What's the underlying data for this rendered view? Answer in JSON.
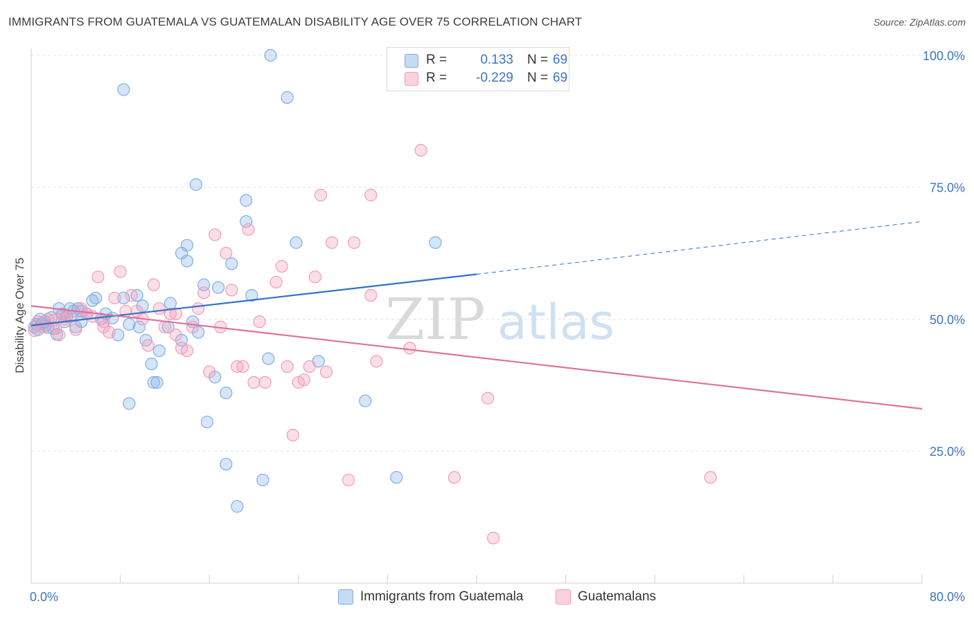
{
  "title": "IMMIGRANTS FROM GUATEMALA VS GUATEMALAN DISABILITY AGE OVER 75 CORRELATION CHART",
  "source": "Source: ZipAtlas.com",
  "watermark": {
    "zip": "ZIP",
    "atlas": "atlas"
  },
  "legend": {
    "r_label": "R =",
    "n_label": "N =",
    "rows": [
      {
        "r": "0.133",
        "n": "69",
        "color": "#7eaee6"
      },
      {
        "r": "-0.229",
        "n": "69",
        "color": "#f29ab8"
      }
    ]
  },
  "chart_data": {
    "type": "scatter",
    "title": "IMMIGRANTS FROM GUATEMALA VS GUATEMALAN DISABILITY AGE OVER 75 CORRELATION CHART",
    "xlabel": "",
    "ylabel": "Disability Age Over 75",
    "xlim": [
      0,
      80
    ],
    "ylim": [
      3,
      103
    ],
    "x_tick_labels": [
      "0.0%",
      "80.0%"
    ],
    "y_ticks": [
      25,
      50,
      75,
      100
    ],
    "y_tick_labels": [
      "25.0%",
      "50.0%",
      "75.0%",
      "100.0%"
    ],
    "grid": true,
    "legend_position": "top-center",
    "series": [
      {
        "name": "Immigrants from Guatemala",
        "color": "#7eaee6",
        "line_color": "#2f70c8",
        "trend": {
          "x": [
            0,
            40
          ],
          "y": [
            48.8,
            58.5
          ],
          "dashed_to": [
            80,
            68.5
          ]
        },
        "points": [
          [
            0.3,
            48.5
          ],
          [
            0.5,
            49
          ],
          [
            0.6,
            48
          ],
          [
            0.8,
            50
          ],
          [
            1,
            49.2
          ],
          [
            1.2,
            49.5
          ],
          [
            1.5,
            48.4
          ],
          [
            1.8,
            50.3
          ],
          [
            2,
            48.2
          ],
          [
            2.3,
            47.1
          ],
          [
            2.5,
            52
          ],
          [
            2.8,
            51
          ],
          [
            3,
            49.5
          ],
          [
            3.2,
            50.5
          ],
          [
            3.5,
            52
          ],
          [
            3.8,
            51.5
          ],
          [
            4,
            48.5
          ],
          [
            4.2,
            52
          ],
          [
            4.5,
            49.5
          ],
          [
            5,
            51
          ],
          [
            5.5,
            53.5
          ],
          [
            5.8,
            54
          ],
          [
            6.3,
            50
          ],
          [
            6.7,
            51
          ],
          [
            7.3,
            50.2
          ],
          [
            7.8,
            47
          ],
          [
            8.3,
            54
          ],
          [
            8.8,
            49
          ],
          [
            9.5,
            54.5
          ],
          [
            9.7,
            48.5
          ],
          [
            10,
            52.5
          ],
          [
            10.3,
            46
          ],
          [
            10.8,
            41.5
          ],
          [
            11,
            38
          ],
          [
            11.3,
            38
          ],
          [
            11.5,
            44
          ],
          [
            12.3,
            48.5
          ],
          [
            12.5,
            53
          ],
          [
            13.5,
            46
          ],
          [
            13.5,
            62.5
          ],
          [
            14,
            61
          ],
          [
            14,
            64
          ],
          [
            14.5,
            49.5
          ],
          [
            15,
            47.5
          ],
          [
            15.5,
            56.5
          ],
          [
            15.8,
            30.5
          ],
          [
            16.5,
            39
          ],
          [
            16.8,
            56
          ],
          [
            17.5,
            36
          ],
          [
            17.5,
            22.5
          ],
          [
            18,
            60.5
          ],
          [
            19.3,
            72.5
          ],
          [
            19.3,
            68.5
          ],
          [
            19.8,
            54.5
          ],
          [
            20.8,
            19.5
          ],
          [
            21.3,
            42.5
          ],
          [
            21.5,
            100
          ],
          [
            23,
            92
          ],
          [
            23.8,
            64.5
          ],
          [
            25.8,
            42
          ],
          [
            30,
            34.5
          ],
          [
            32.8,
            20
          ],
          [
            8.3,
            93.5
          ],
          [
            8.8,
            34
          ],
          [
            14.8,
            75.5
          ],
          [
            36.3,
            64.5
          ],
          [
            18.5,
            14.5
          ],
          [
            1.3,
            48.8
          ],
          [
            4.5,
            51.5
          ]
        ]
      },
      {
        "name": "Guatemalans",
        "color": "#f29ab8",
        "line_color": "#e0709a",
        "trend": {
          "x": [
            0,
            80
          ],
          "y": [
            52.5,
            33
          ]
        },
        "points": [
          [
            0.3,
            47.8
          ],
          [
            0.6,
            49.5
          ],
          [
            1,
            48.5
          ],
          [
            1.5,
            50
          ],
          [
            2,
            49.8
          ],
          [
            2.2,
            48.2
          ],
          [
            2.5,
            47
          ],
          [
            3,
            50
          ],
          [
            3.5,
            50.5
          ],
          [
            4,
            48
          ],
          [
            4.5,
            52
          ],
          [
            5,
            51
          ],
          [
            5.5,
            50.5
          ],
          [
            6,
            58
          ],
          [
            6.5,
            48.5
          ],
          [
            7,
            47.5
          ],
          [
            7.5,
            54
          ],
          [
            8,
            59
          ],
          [
            8.5,
            51.5
          ],
          [
            9,
            54.5
          ],
          [
            9.5,
            51.5
          ],
          [
            10,
            50
          ],
          [
            10.5,
            45
          ],
          [
            11,
            56.5
          ],
          [
            11.5,
            52
          ],
          [
            12,
            48.5
          ],
          [
            12.5,
            51
          ],
          [
            13,
            47
          ],
          [
            13.5,
            44.5
          ],
          [
            14,
            44
          ],
          [
            14.5,
            48.5
          ],
          [
            15,
            52
          ],
          [
            15.5,
            55
          ],
          [
            16,
            40
          ],
          [
            16.5,
            66
          ],
          [
            17,
            48.5
          ],
          [
            17.5,
            62.5
          ],
          [
            18,
            55.5
          ],
          [
            18.5,
            41
          ],
          [
            19,
            41
          ],
          [
            19.5,
            67
          ],
          [
            20,
            38
          ],
          [
            20.5,
            49.5
          ],
          [
            21,
            38
          ],
          [
            22,
            57
          ],
          [
            22.5,
            60
          ],
          [
            23,
            41
          ],
          [
            23.5,
            28
          ],
          [
            24,
            38
          ],
          [
            24.5,
            38.5
          ],
          [
            25,
            41
          ],
          [
            25.5,
            58
          ],
          [
            26,
            73.5
          ],
          [
            26.5,
            40
          ],
          [
            27,
            64.5
          ],
          [
            28.5,
            19.5
          ],
          [
            29,
            64.5
          ],
          [
            30.5,
            54.5
          ],
          [
            30.5,
            73.5
          ],
          [
            31,
            42
          ],
          [
            34,
            44.5
          ],
          [
            35,
            82
          ],
          [
            38,
            20
          ],
          [
            41,
            35
          ],
          [
            41.5,
            8.5
          ],
          [
            61,
            20
          ],
          [
            13,
            51
          ],
          [
            2.8,
            50.5
          ],
          [
            6.5,
            49.5
          ]
        ]
      }
    ]
  },
  "axes": {
    "y_title": "Disability Age Over 75",
    "x_min_label": "0.0%",
    "x_max_label": "80.0%",
    "y_labels": [
      "25.0%",
      "50.0%",
      "75.0%",
      "100.0%"
    ]
  },
  "bottom_legend": [
    {
      "label": "Immigrants from Guatemala",
      "color": "#7eaee6"
    },
    {
      "label": "Guatemalans",
      "color": "#f29ab8"
    }
  ]
}
